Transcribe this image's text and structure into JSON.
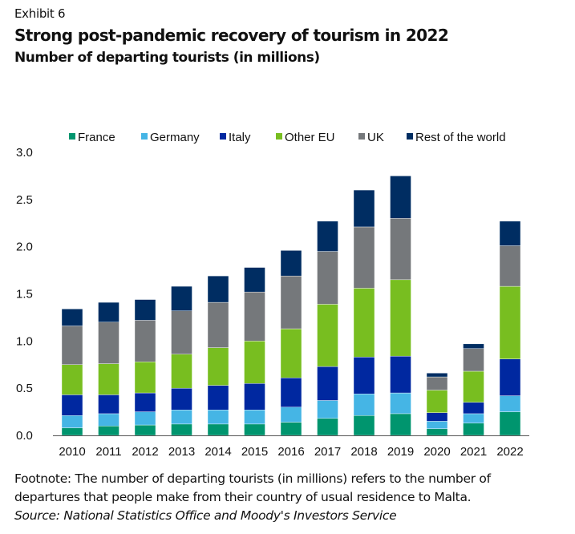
{
  "header": {
    "exhibit": "Exhibit 6",
    "title": "Strong post-pandemic recovery of tourism in 2022",
    "subtitle": "Number of departing tourists (in millions)"
  },
  "chart_data": {
    "type": "bar",
    "stacked": true,
    "title": "Strong post-pandemic recovery of tourism in 2022",
    "subtitle": "Number of departing tourists (in millions)",
    "xlabel": "",
    "ylabel": "",
    "ylim": [
      0,
      3.0
    ],
    "yticks": [
      "0.0",
      "0.5",
      "1.0",
      "1.5",
      "2.0",
      "2.5",
      "3.0"
    ],
    "grid": false,
    "legend_position": "top",
    "categories": [
      "2010",
      "2011",
      "2012",
      "2013",
      "2014",
      "2015",
      "2016",
      "2017",
      "2018",
      "2019",
      "2020",
      "2021",
      "2022"
    ],
    "series": [
      {
        "name": "France",
        "color": "#00956e",
        "values": [
          0.08,
          0.1,
          0.11,
          0.12,
          0.12,
          0.12,
          0.14,
          0.18,
          0.21,
          0.23,
          0.07,
          0.13,
          0.25
        ]
      },
      {
        "name": "Germany",
        "color": "#45b5e5",
        "values": [
          0.13,
          0.13,
          0.14,
          0.15,
          0.15,
          0.15,
          0.16,
          0.19,
          0.23,
          0.22,
          0.08,
          0.1,
          0.17
        ]
      },
      {
        "name": "Italy",
        "color": "#0028a0",
        "values": [
          0.22,
          0.2,
          0.2,
          0.23,
          0.26,
          0.28,
          0.31,
          0.36,
          0.39,
          0.39,
          0.09,
          0.12,
          0.39
        ]
      },
      {
        "name": "Other EU",
        "color": "#78be20",
        "values": [
          0.32,
          0.33,
          0.33,
          0.36,
          0.4,
          0.45,
          0.52,
          0.66,
          0.73,
          0.81,
          0.24,
          0.33,
          0.77
        ]
      },
      {
        "name": "UK",
        "color": "#75787b",
        "values": [
          0.41,
          0.44,
          0.44,
          0.46,
          0.48,
          0.52,
          0.56,
          0.56,
          0.65,
          0.65,
          0.14,
          0.24,
          0.43
        ]
      },
      {
        "name": "Rest of the world",
        "color": "#002d62",
        "values": [
          0.18,
          0.21,
          0.22,
          0.26,
          0.28,
          0.26,
          0.27,
          0.32,
          0.39,
          0.45,
          0.04,
          0.05,
          0.26
        ]
      }
    ]
  },
  "footnote": {
    "line1": "Footnote: The number of departing tourists (in millions) refers to the number of",
    "line2": "departures that people make from their country of usual residence to Malta.",
    "source": "Source: National Statistics Office and Moody's Investors Service"
  }
}
